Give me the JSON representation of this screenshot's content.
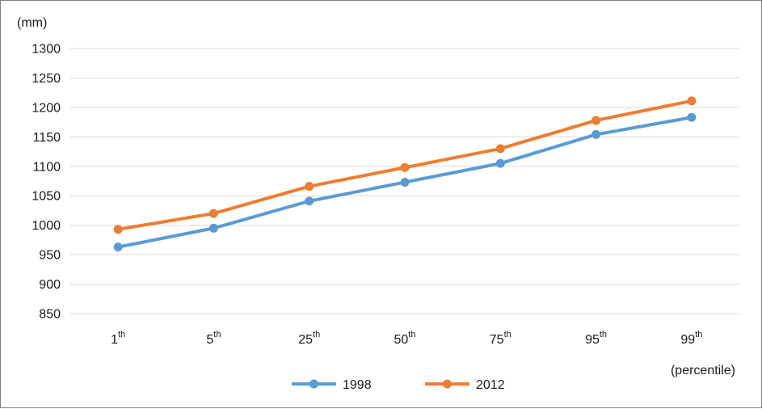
{
  "chart_data": {
    "type": "line",
    "ylabel": "(mm)",
    "xlabel": "(percentile)",
    "ylim": [
      850,
      1300
    ],
    "yticks": [
      850,
      900,
      950,
      1000,
      1050,
      1100,
      1150,
      1200,
      1250,
      1300
    ],
    "grid": true,
    "legend_position": "bottom",
    "categories": [
      {
        "num": "1",
        "sup": "th"
      },
      {
        "num": "5",
        "sup": "th"
      },
      {
        "num": "25",
        "sup": "th"
      },
      {
        "num": "50",
        "sup": "th"
      },
      {
        "num": "75",
        "sup": "th"
      },
      {
        "num": "95",
        "sup": "th"
      },
      {
        "num": "99",
        "sup": "th"
      }
    ],
    "series": [
      {
        "name": "1998",
        "color": "#5b9bd5",
        "values": [
          963,
          995,
          1041,
          1073,
          1105,
          1154,
          1183
        ]
      },
      {
        "name": "2012",
        "color": "#ed7d31",
        "values": [
          993,
          1020,
          1066,
          1098,
          1130,
          1178,
          1211
        ]
      }
    ]
  }
}
